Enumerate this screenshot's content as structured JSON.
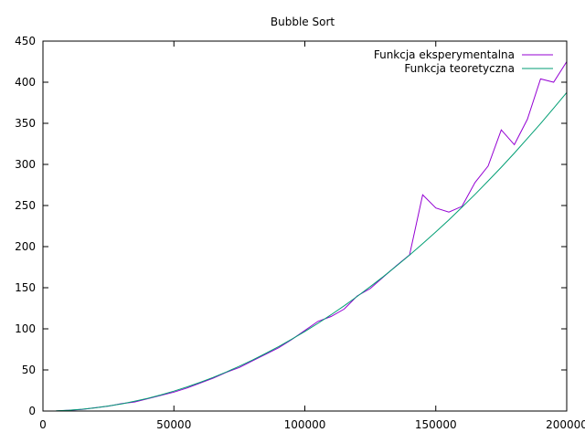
{
  "chart_data": {
    "type": "line",
    "title": "Bubble Sort",
    "xlabel": "",
    "ylabel": "",
    "xlim": [
      0,
      200000
    ],
    "ylim": [
      0,
      450
    ],
    "xticks": [
      0,
      50000,
      100000,
      150000,
      200000
    ],
    "yticks": [
      0,
      50,
      100,
      150,
      200,
      250,
      300,
      350,
      400,
      450
    ],
    "grid": false,
    "legend_position": "top-right",
    "series": [
      {
        "name": "Funkcja eksperymentalna",
        "color": "#9400d3",
        "x": [
          5000,
          10000,
          15000,
          20000,
          25000,
          30000,
          35000,
          40000,
          45000,
          50000,
          55000,
          60000,
          65000,
          70000,
          75000,
          80000,
          85000,
          90000,
          95000,
          100000,
          105000,
          110000,
          115000,
          120000,
          125000,
          130000,
          135000,
          140000,
          145000,
          150000,
          155000,
          160000,
          165000,
          170000,
          175000,
          180000,
          185000,
          190000,
          195000,
          200000
        ],
        "y": [
          0,
          1,
          2,
          4,
          6,
          9,
          11,
          15,
          19,
          23,
          28,
          34,
          40,
          47,
          53,
          61,
          69,
          77,
          87,
          98,
          109,
          115,
          124,
          140,
          149,
          163,
          177,
          190,
          263,
          247,
          242,
          249,
          278,
          298,
          342,
          324,
          355,
          404,
          400,
          425
        ]
      },
      {
        "name": "Funkcja teoretyczna",
        "color": "#009e73",
        "x": [
          5000,
          10000,
          15000,
          20000,
          25000,
          30000,
          35000,
          40000,
          45000,
          50000,
          55000,
          60000,
          65000,
          70000,
          75000,
          80000,
          85000,
          90000,
          95000,
          100000,
          105000,
          110000,
          115000,
          120000,
          125000,
          130000,
          135000,
          140000,
          145000,
          150000,
          155000,
          160000,
          165000,
          170000,
          175000,
          180000,
          185000,
          190000,
          195000,
          200000
        ],
        "y": [
          0.2,
          1,
          2.2,
          3.9,
          6.1,
          8.7,
          11.9,
          15.5,
          19.6,
          24.2,
          29.3,
          34.9,
          40.9,
          47.5,
          54.5,
          62,
          70,
          78.5,
          87.4,
          96.8,
          106.7,
          117.1,
          128,
          139.4,
          151.3,
          163.6,
          176.5,
          189.8,
          203.6,
          217.9,
          232.6,
          247.9,
          263.6,
          279.9,
          296.6,
          313.8,
          331.5,
          349.7,
          368.4,
          387.5
        ]
      }
    ]
  }
}
